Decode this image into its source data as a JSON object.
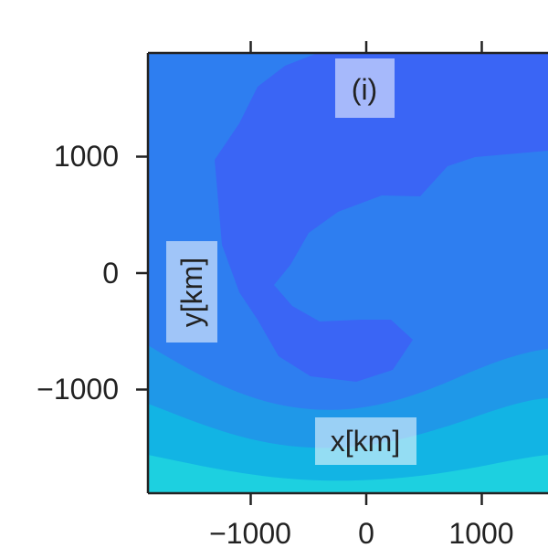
{
  "chart_data": {
    "type": "heatmap",
    "panel_label": "(i)",
    "xlabel": "x[km]",
    "ylabel": "y[km]",
    "x_ticks": [
      -1000,
      0,
      1000
    ],
    "y_ticks": [
      1000,
      0,
      -1000
    ],
    "x_tick_labels": [
      "−1000",
      "0",
      "1000"
    ],
    "y_tick_labels": [
      "1000",
      "0",
      "−1000"
    ],
    "xlim": [
      -1900,
      1600
    ],
    "ylim": [
      -1900,
      1900
    ],
    "grid": false,
    "colors": {
      "lowest": "#3a65f5",
      "low": "#2e7ef0",
      "mid": "#1f98e8",
      "high": "#12b4e4",
      "highest": "#1dd0e0"
    }
  }
}
